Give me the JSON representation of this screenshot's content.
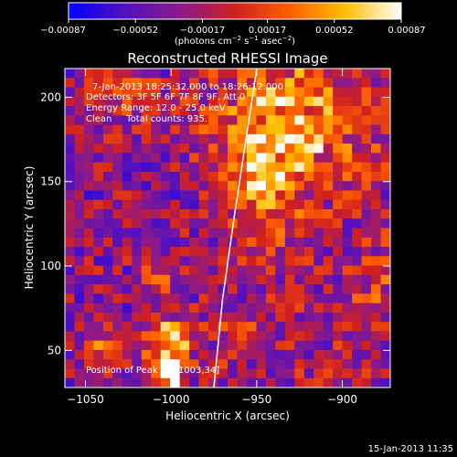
{
  "chart_data": {
    "type": "heatmap",
    "title": "Reconstructed RHESSI Image",
    "xlabel": "Heliocentric X (arcsec)",
    "ylabel": "Heliocentric Y (arcsec)",
    "xlim": [
      -1062,
      -872
    ],
    "ylim": [
      28,
      217
    ],
    "x_ticks": [
      {
        "value": -1050,
        "label": "−1050"
      },
      {
        "value": -1000,
        "label": "−1000"
      },
      {
        "value": -950,
        "label": "−950"
      },
      {
        "value": -900,
        "label": "−900"
      }
    ],
    "y_ticks": [
      {
        "value": 50,
        "label": "50"
      },
      {
        "value": 100,
        "label": "100"
      },
      {
        "value": 150,
        "label": "150"
      },
      {
        "value": 200,
        "label": "200"
      }
    ],
    "colorbar": {
      "range": [
        -0.00087,
        0.00087
      ],
      "ticks": [
        {
          "value": -0.00087,
          "label": "−0.00087"
        },
        {
          "value": -0.00052,
          "label": "−0.00052"
        },
        {
          "value": -0.00017,
          "label": "−0.00017"
        },
        {
          "value": 0.00017,
          "label": "0.00017"
        },
        {
          "value": 0.00052,
          "label": "0.00052"
        },
        {
          "value": 0.00087,
          "label": "0.00087"
        }
      ],
      "unit_main": "(photons cm",
      "unit_exp1": "−2",
      "unit_mid": " s",
      "unit_exp2": "−1",
      "unit_mid2": " asec",
      "unit_exp3": "−2",
      "unit_end": ")",
      "colors": [
        "#0000ff",
        "#5010c0",
        "#8a1a8a",
        "#d02020",
        "#ff6000",
        "#ffc000",
        "#ffffff"
      ]
    },
    "annotations": {
      "time_range": "7-Jan-2013 18:25:32.000 to 18:26:12.000",
      "detectors": "Detectors: 3F 5F 6F 7F 8F 9F, Att 0",
      "energy": "Energy Range: 12.0 - 25.0 keV",
      "clean": "Clean     Total counts: 935.",
      "peak": "Position of Peak = [-1003,34]"
    },
    "limb_curve": [
      [
        -975,
        28
      ],
      [
        -970,
        80
      ],
      [
        -963,
        130
      ],
      [
        -957,
        170
      ],
      [
        -950,
        217
      ]
    ],
    "hot_regions": [
      {
        "x": -1003,
        "y": 34,
        "sx": 8,
        "sy": 8,
        "amp": 1.6
      },
      {
        "x": -1000,
        "y": 55,
        "sx": 9,
        "sy": 10,
        "amp": 1.2
      },
      {
        "x": -1005,
        "y": 95,
        "sx": 7,
        "sy": 6,
        "amp": 0.7
      },
      {
        "x": -930,
        "y": 185,
        "sx": 30,
        "sy": 25,
        "amp": 1.0
      },
      {
        "x": -945,
        "y": 150,
        "sx": 15,
        "sy": 25,
        "amp": 0.7
      },
      {
        "x": -1040,
        "y": 50,
        "sx": 12,
        "sy": 10,
        "amp": 0.6
      },
      {
        "x": -960,
        "y": 60,
        "sx": 8,
        "sy": 8,
        "amp": 0.7
      },
      {
        "x": -1030,
        "y": 200,
        "sx": 20,
        "sy": 10,
        "amp": 0.5
      },
      {
        "x": -880,
        "y": 90,
        "sx": 10,
        "sy": 15,
        "amp": 0.4
      }
    ]
  },
  "timestamp": "15-Jan-2013 11:35"
}
